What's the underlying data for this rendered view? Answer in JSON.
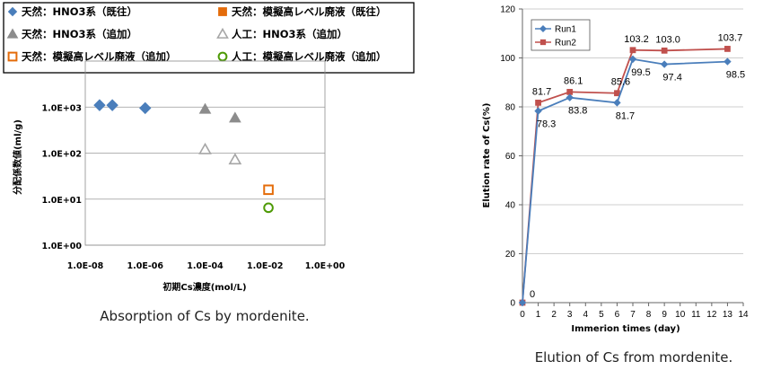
{
  "chart_data": [
    {
      "type": "scatter",
      "title": "",
      "caption": "Absorption of Cs by mordenite.",
      "xlabel": "初期Cs濃度(mol/L)",
      "ylabel": "分配係数値(ml/g)",
      "x_scale": "log",
      "y_scale": "log",
      "xlim": [
        1e-08,
        1
      ],
      "ylim": [
        1,
        10000
      ],
      "x_ticks": [
        "1.0E-08",
        "1.0E-06",
        "1.0E-04",
        "1.0E-02",
        "1.0E+00"
      ],
      "y_ticks": [
        "1.0E+00",
        "1.0E+01",
        "1.0E+02",
        "1.0E+03"
      ],
      "grid": "horizontal",
      "legend_position": "top",
      "series": [
        {
          "name": "天然：HNO3系（既往）",
          "marker": "diamond",
          "color": "#4a7ebb",
          "fill": true,
          "points": [
            {
              "x": 3e-08,
              "y": 1100
            },
            {
              "x": 8e-08,
              "y": 1100
            },
            {
              "x": 1e-06,
              "y": 950
            }
          ]
        },
        {
          "name": "天然：模擬高レベル廃液（既往）",
          "marker": "square",
          "color": "#e46c0a",
          "fill": true,
          "points": []
        },
        {
          "name": "天然：HNO3系（追加）",
          "marker": "triangle",
          "color": "#8c8c8c",
          "fill": true,
          "points": [
            {
              "x": 0.0001,
              "y": 900
            },
            {
              "x": 0.001,
              "y": 580
            }
          ]
        },
        {
          "name": "人工：HNO3系（追加）",
          "marker": "triangle",
          "color": "#a6a6a6",
          "fill": false,
          "points": [
            {
              "x": 0.0001,
              "y": 120
            },
            {
              "x": 0.001,
              "y": 72
            }
          ]
        },
        {
          "name": "天然：模擬高レベル廃液（追加）",
          "marker": "square",
          "color": "#e46c0a",
          "fill": false,
          "points": [
            {
              "x": 0.013,
              "y": 16
            }
          ]
        },
        {
          "name": "人工：模擬高レベル廃液（追加）",
          "marker": "circle",
          "color": "#4e9a06",
          "fill": false,
          "points": [
            {
              "x": 0.013,
              "y": 6.5
            }
          ]
        }
      ]
    },
    {
      "type": "line",
      "title": "",
      "caption": "Elution of Cs from mordenite.",
      "xlabel": "Immerion times (day)",
      "ylabel": "Elution rate of Cs(%)",
      "xlim": [
        0,
        14
      ],
      "ylim": [
        0,
        120
      ],
      "x_ticks": [
        "0",
        "1",
        "2",
        "3",
        "4",
        "5",
        "6",
        "7",
        "8",
        "9",
        "10",
        "11",
        "12",
        "13",
        "14"
      ],
      "y_ticks": [
        "0",
        "20",
        "40",
        "60",
        "80",
        "100",
        "120"
      ],
      "grid": "horizontal",
      "legend_position": "top-left",
      "series": [
        {
          "name": "Run1",
          "color": "#4a7ebb",
          "marker": "diamond",
          "x": [
            0,
            1,
            3,
            6,
            7,
            9,
            13
          ],
          "y": [
            0,
            78.3,
            83.8,
            81.7,
            99.5,
            97.4,
            98.5
          ]
        },
        {
          "name": "Run2",
          "color": "#c0504d",
          "marker": "square",
          "x": [
            0,
            1,
            3,
            6,
            7,
            9,
            13
          ],
          "y": [
            0,
            81.7,
            86.1,
            85.6,
            103.2,
            103.0,
            103.7
          ]
        }
      ],
      "data_labels": [
        {
          "text": "0",
          "x": 0,
          "y": 0,
          "pos": "upper-right"
        },
        {
          "text": "81.7",
          "x": 1,
          "y": 81.7,
          "pos": "above"
        },
        {
          "text": "78.3",
          "x": 1,
          "y": 78.3,
          "pos": "below"
        },
        {
          "text": "86.1",
          "x": 3,
          "y": 86.1,
          "pos": "above"
        },
        {
          "text": "83.8",
          "x": 3,
          "y": 83.8,
          "pos": "below"
        },
        {
          "text": "85.6",
          "x": 6,
          "y": 85.6,
          "pos": "above"
        },
        {
          "text": "81.7",
          "x": 6,
          "y": 81.7,
          "pos": "below"
        },
        {
          "text": "103.2",
          "x": 7,
          "y": 103.2,
          "pos": "above"
        },
        {
          "text": "99.5",
          "x": 7,
          "y": 99.5,
          "pos": "below"
        },
        {
          "text": "103.0",
          "x": 9,
          "y": 103.0,
          "pos": "above"
        },
        {
          "text": "97.4",
          "x": 9,
          "y": 97.4,
          "pos": "below"
        },
        {
          "text": "103.7",
          "x": 13,
          "y": 103.7,
          "pos": "above"
        },
        {
          "text": "98.5",
          "x": 13,
          "y": 98.5,
          "pos": "below"
        }
      ]
    }
  ]
}
